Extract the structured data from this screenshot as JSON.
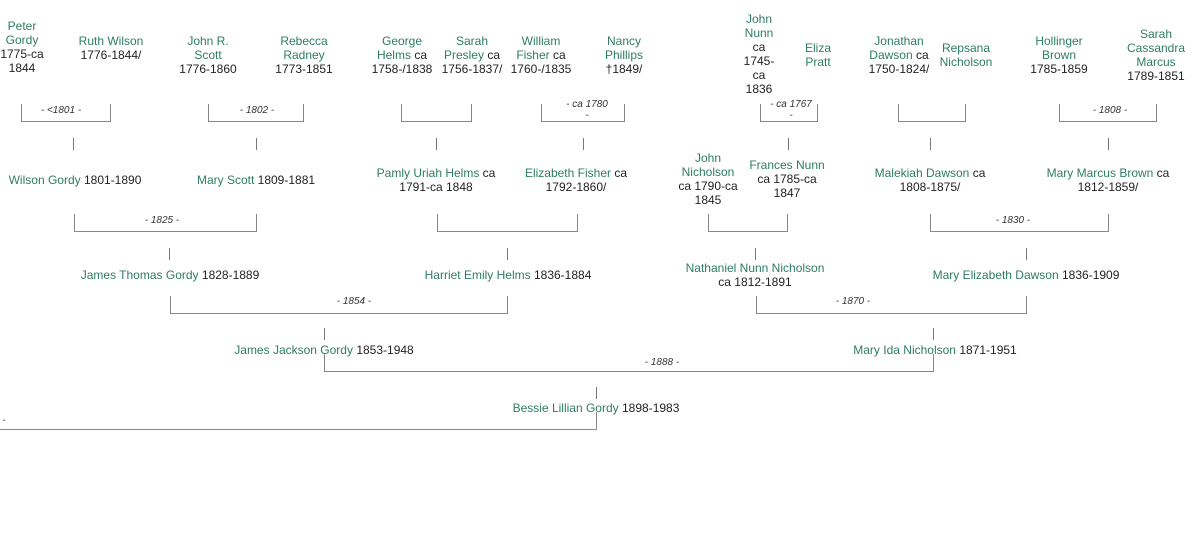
{
  "colors": {
    "name": "#2e7d60",
    "text": "#222222",
    "line": "#888888"
  },
  "gen1": {
    "peter": {
      "name": "Peter Gordy",
      "dates": "1775-ca 1844"
    },
    "ruth": {
      "name": "Ruth Wilson",
      "dates": "1776-1844/"
    },
    "johnr": {
      "name": "John R. Scott",
      "dates": "1776-1860"
    },
    "rebecca": {
      "name": "Rebecca Radney",
      "dates": "1773-1851"
    },
    "george": {
      "name": "George Helms",
      "dates": "ca 1758-/1838"
    },
    "sarahp": {
      "name": "Sarah Presley",
      "dates": "ca 1756-1837/"
    },
    "william": {
      "name": "William Fisher",
      "dates": "ca 1760-/1835"
    },
    "nancy": {
      "name": "Nancy Phillips",
      "dates": "†1849/"
    },
    "johnn": {
      "name": "John Nunn",
      "dates": "ca 1745-ca 1836"
    },
    "eliza": {
      "name": "Eliza Pratt",
      "dates": ""
    },
    "jonathan": {
      "name": "Jonathan Dawson",
      "dates": "ca 1750-1824/"
    },
    "repsana": {
      "name": "Repsana Nicholson",
      "dates": ""
    },
    "hollinger": {
      "name": "Hollinger Brown",
      "dates": "1785-1859"
    },
    "sarahc": {
      "name": "Sarah Cassandra Marcus",
      "dates": "1789-1851"
    }
  },
  "gen1_marriages": {
    "m1": "- <1801 -",
    "m2": "- 1802 -",
    "m4": "- ca 1780 -",
    "m5": "- ca 1767 -",
    "m7": "- 1808 -"
  },
  "gen2": {
    "wilson": {
      "name": "Wilson Gordy",
      "dates": "1801-1890"
    },
    "mary": {
      "name": "Mary Scott",
      "dates": "1809-1881"
    },
    "pamly": {
      "name": "Pamly Uriah Helms",
      "dates": "ca 1791-ca 1848"
    },
    "elizabeth": {
      "name": "Elizabeth Fisher",
      "dates": "ca 1792-1860/"
    },
    "johnnich": {
      "name": "John Nicholson",
      "dates": "ca 1790-ca 1845"
    },
    "frances": {
      "name": "Frances Nunn",
      "dates": "ca 1785-ca 1847"
    },
    "malekiah": {
      "name": "Malekiah Dawson",
      "dates": "ca 1808-1875/"
    },
    "marymb": {
      "name": "Mary Marcus Brown",
      "dates": "ca 1812-1859/"
    }
  },
  "gen2_marriages": {
    "m1": "- 1825 -",
    "m4": "- 1830 -"
  },
  "gen3": {
    "james": {
      "name": "James Thomas Gordy",
      "dates": "1828-1889"
    },
    "harriet": {
      "name": "Harriet Emily Helms",
      "dates": "1836-1884"
    },
    "nathaniel": {
      "name": "Nathaniel Nunn Nicholson",
      "dates": "ca 1812-1891"
    },
    "maryed": {
      "name": "Mary Elizabeth Dawson",
      "dates": "1836-1909"
    }
  },
  "gen3_marriages": {
    "m1": "- 1854 -",
    "m2": "- 1870 -"
  },
  "gen4": {
    "jamesj": {
      "name": "James Jackson Gordy",
      "dates": "1853-1948"
    },
    "maryida": {
      "name": "Mary Ida Nicholson",
      "dates": "1871-1951"
    }
  },
  "gen4_marriages": {
    "m1": "- 1888 -"
  },
  "gen5": {
    "bessie": {
      "name": "Bessie Lillian Gordy",
      "dates": "1898-1983"
    }
  },
  "gen5_marriages": {
    "m1": "-"
  }
}
